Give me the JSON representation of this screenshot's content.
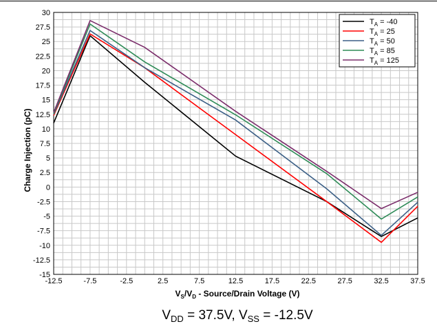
{
  "chart_data": {
    "type": "line",
    "x": [
      -12.5,
      -7.5,
      0,
      12.5,
      25,
      32.5,
      37.5
    ],
    "xlim": [
      -12.5,
      37.5
    ],
    "ylim": [
      -15,
      30
    ],
    "xticks": [
      -12.5,
      -7.5,
      -2.5,
      2.5,
      7.5,
      12.5,
      17.5,
      22.5,
      27.5,
      32.5,
      37.5
    ],
    "yticks": [
      -15,
      -12.5,
      -10,
      -7.5,
      -5,
      -2.5,
      0,
      2.5,
      5,
      7.5,
      10,
      12.5,
      15,
      17.5,
      20,
      22.5,
      25,
      27.5,
      30
    ],
    "xlabel": {
      "main": "V",
      "sub1": "S",
      "sep": "/V",
      "sub2": "D",
      "rest": " - Source/Drain Voltage (V)"
    },
    "ylabel": "Charge Injection (pC)",
    "grid": true,
    "legend_position": "top-right",
    "series": [
      {
        "name": "-40",
        "color": "#000000",
        "values": [
          11,
          26,
          18,
          5.3,
          -2.5,
          -8.5,
          -5.3
        ]
      },
      {
        "name": "25",
        "color": "#ff0000",
        "values": [
          12.3,
          26.3,
          20.5,
          9,
          -2.5,
          -9.5,
          -3.3
        ]
      },
      {
        "name": "50",
        "color": "#3b5f86",
        "values": [
          12.5,
          26.9,
          20.5,
          11.5,
          -0.3,
          -8.3,
          -2.6
        ]
      },
      {
        "name": "85",
        "color": "#2e8b57",
        "values": [
          12.6,
          28,
          21.5,
          12.4,
          2.3,
          -5.5,
          -1.7
        ]
      },
      {
        "name": "125",
        "color": "#7b2d6b",
        "values": [
          12.8,
          28.6,
          24,
          13,
          2.7,
          -3.7,
          -0.9
        ]
      }
    ],
    "legend_prefix": {
      "main": "T",
      "sub": "A",
      "eq": " = "
    },
    "caption": {
      "vdd_main": "V",
      "vdd_sub": "DD",
      "vdd_val": " = 37.5V, ",
      "vss_main": "V",
      "vss_sub": "SS",
      "vss_val": " = -12.5V"
    }
  }
}
